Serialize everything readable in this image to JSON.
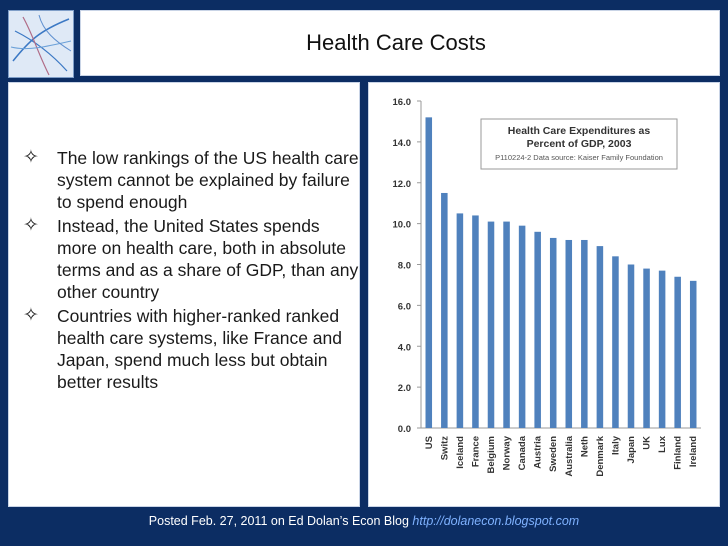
{
  "title": "Health Care Costs",
  "bullets": [
    "The low rankings of the US health care system cannot be explained by failure to spend enough",
    "Instead, the United States spends more on health care, both in absolute terms and as a share of GDP, than any other country",
    "Countries with higher-ranked ranked health care systems, like France and Japan, spend much less but obtain better results"
  ],
  "footer": {
    "text": "Posted Feb. 27, 2011 on Ed Dolan’s Econ Blog",
    "link": "http://dolanecon.blogspot.com"
  },
  "colors": {
    "bar": "#4f81bd",
    "background": "#0c2d63"
  },
  "chart_data": {
    "type": "bar",
    "title": "Health Care Expenditures as Percent of GDP, 2003",
    "subtitle": "P110224-2 Data source: Kaiser Family Foundation",
    "categories": [
      "US",
      "Switz",
      "Iceland",
      "France",
      "Belgium",
      "Norway",
      "Canada",
      "Austria",
      "Sweden",
      "Australia",
      "Neth",
      "Denmark",
      "Italy",
      "Japan",
      "UK",
      "Lux",
      "Finland",
      "Ireland"
    ],
    "values": [
      15.2,
      11.5,
      10.5,
      10.4,
      10.1,
      10.1,
      9.9,
      9.6,
      9.3,
      9.2,
      9.2,
      8.9,
      8.4,
      8.0,
      7.8,
      7.7,
      7.4,
      7.2
    ],
    "yticks": [
      "0.0",
      "2.0",
      "4.0",
      "6.0",
      "8.0",
      "10.0",
      "12.0",
      "14.0",
      "16.0"
    ],
    "ylim": [
      0,
      16
    ],
    "grid": false,
    "legend": "none"
  }
}
